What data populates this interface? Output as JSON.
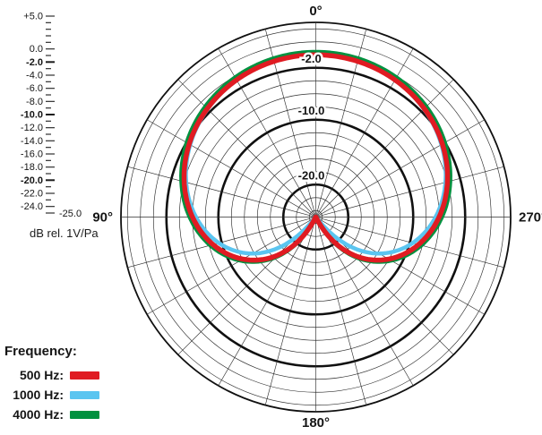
{
  "chart_data": {
    "type": "polar-line",
    "description": "Microphone cardioid polar pattern at three frequencies",
    "angle_labels": [
      {
        "angle": 0,
        "label": "0°"
      },
      {
        "angle": 90,
        "label": "90°"
      },
      {
        "angle": 180,
        "label": "180°"
      },
      {
        "angle": 270,
        "label": "270°"
      }
    ],
    "r_axis": {
      "unit": "dB",
      "min": -25,
      "max": 5,
      "ring_step_db": 2,
      "bold_rings_db": [
        -2,
        -10,
        -20
      ],
      "ring_labels": [
        {
          "db": -2,
          "text": "-2.0"
        },
        {
          "db": -10,
          "text": "-10.0"
        },
        {
          "db": -20,
          "text": "-20.0"
        }
      ],
      "spoke_step_deg": 15
    },
    "scale_bar": {
      "unit_label": "dB rel. 1V/Pa",
      "tick_step_db": 1,
      "labels": [
        {
          "db": 5,
          "text": "+5.0",
          "bold": false
        },
        {
          "db": 0,
          "text": "0.0",
          "bold": false
        },
        {
          "db": -2,
          "text": "-2.0",
          "bold": true
        },
        {
          "db": -4,
          "text": "-4.0",
          "bold": false
        },
        {
          "db": -6,
          "text": "-6.0",
          "bold": false
        },
        {
          "db": -8,
          "text": "-8.0",
          "bold": false
        },
        {
          "db": -10,
          "text": "-10.0",
          "bold": true
        },
        {
          "db": -12,
          "text": "-12.0",
          "bold": false
        },
        {
          "db": -14,
          "text": "-14.0",
          "bold": false
        },
        {
          "db": -16,
          "text": "-16.0",
          "bold": false
        },
        {
          "db": -18,
          "text": "-18.0",
          "bold": false
        },
        {
          "db": -20,
          "text": "-20.0",
          "bold": true
        },
        {
          "db": -22,
          "text": "-22.0",
          "bold": false
        },
        {
          "db": -24,
          "text": "-24.0",
          "bold": false
        }
      ],
      "center_label": {
        "db": -25,
        "text": "-25.0"
      }
    },
    "symmetric": true,
    "series": [
      {
        "name": "500 Hz",
        "color": "#e01b22",
        "stroke_width": 5.5,
        "model": {
          "type": "cardioid",
          "a": 0.5,
          "b": 0.5,
          "gain_db": 0,
          "clip_db": -25
        },
        "points_deg_db": [
          [
            0,
            0.0
          ],
          [
            15,
            -0.1
          ],
          [
            30,
            -0.6
          ],
          [
            45,
            -1.4
          ],
          [
            60,
            -2.5
          ],
          [
            75,
            -4.0
          ],
          [
            90,
            -6.0
          ],
          [
            105,
            -8.6
          ],
          [
            120,
            -12.0
          ],
          [
            135,
            -16.7
          ],
          [
            150,
            -23.5
          ],
          [
            165,
            -25.0
          ],
          [
            180,
            -25.0
          ]
        ]
      },
      {
        "name": "1000 Hz",
        "color": "#5bc5f0",
        "stroke_width": 4.5,
        "model": {
          "type": "cardioid",
          "a": 0.47,
          "b": 0.53,
          "gain_db": 0,
          "clip_db": -25
        },
        "points_deg_db": [
          [
            0,
            0.0
          ],
          [
            15,
            -0.2
          ],
          [
            30,
            -0.6
          ],
          [
            45,
            -1.5
          ],
          [
            60,
            -2.7
          ],
          [
            75,
            -4.3
          ],
          [
            90,
            -6.6
          ],
          [
            105,
            -9.6
          ],
          [
            120,
            -13.8
          ],
          [
            135,
            -20.4
          ],
          [
            150,
            -25.0
          ],
          [
            165,
            -25.0
          ],
          [
            180,
            -25.0
          ]
        ]
      },
      {
        "name": "4000 Hz",
        "color": "#00913f",
        "stroke_width": 4.5,
        "model": {
          "type": "cardioid",
          "a": 0.5,
          "b": 0.5,
          "gain_db": 0.45,
          "clip_db": -25
        },
        "points_deg_db": [
          [
            0,
            0.5
          ],
          [
            15,
            0.3
          ],
          [
            30,
            -0.2
          ],
          [
            45,
            -0.9
          ],
          [
            60,
            -2.1
          ],
          [
            75,
            -3.6
          ],
          [
            90,
            -5.6
          ],
          [
            105,
            -8.2
          ],
          [
            120,
            -11.6
          ],
          [
            135,
            -16.2
          ],
          [
            150,
            -23.0
          ],
          [
            165,
            -25.0
          ],
          [
            180,
            -25.0
          ]
        ]
      }
    ]
  },
  "unit_label": "dB rel. 1V/Pa",
  "legend": {
    "title": "Frequency:",
    "items": [
      {
        "label": "500 Hz:",
        "color": "#e01b22"
      },
      {
        "label": "1000 Hz:",
        "color": "#5bc5f0"
      },
      {
        "label": "4000 Hz:",
        "color": "#00913f"
      }
    ]
  }
}
